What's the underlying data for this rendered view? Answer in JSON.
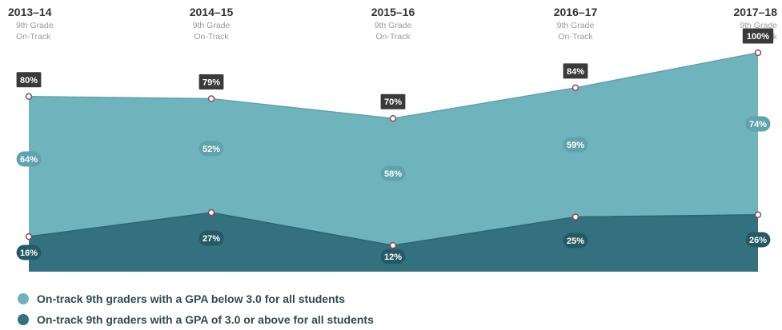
{
  "chart_data": {
    "type": "area",
    "categories": [
      "2013–14",
      "2014–15",
      "2015–16",
      "2016–17",
      "2017–18"
    ],
    "header_sub1": "9th Grade",
    "header_sub2": "On-Track",
    "ylim": [
      0,
      100
    ],
    "totals": {
      "values": [
        80,
        79,
        70,
        84,
        100
      ],
      "labels": [
        "80%",
        "79%",
        "70%",
        "84%",
        "100%"
      ]
    },
    "series": [
      {
        "name": "On-track 9th graders with a GPA below 3.0 for all students",
        "values": [
          64,
          52,
          58,
          59,
          74
        ],
        "labels": [
          "64%",
          "52%",
          "58%",
          "59%",
          "74%"
        ],
        "color": "#6fb3bd"
      },
      {
        "name": "On-track 9th graders with a GPA of 3.0 or above for all students",
        "values": [
          16,
          27,
          12,
          25,
          26
        ],
        "labels": [
          "16%",
          "27%",
          "12%",
          "25%",
          "26%"
        ],
        "color": "#33717f"
      }
    ],
    "grid": false,
    "legend_placement": "bottom-left"
  },
  "colors": {
    "total_label_bg": "#3a3a3a",
    "header_text": "#333333",
    "sub_text": "#9a9a9a",
    "marker_stroke": "#8c4a5c"
  }
}
